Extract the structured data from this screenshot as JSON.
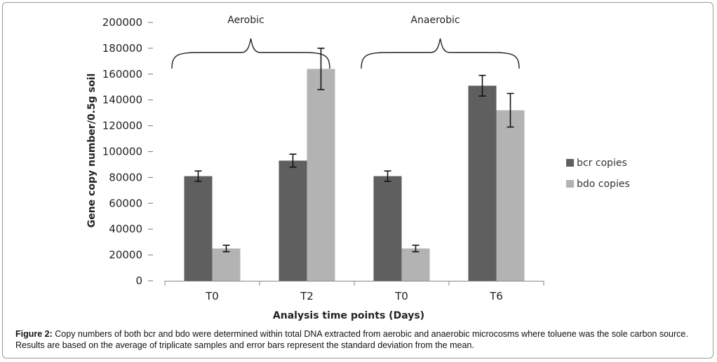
{
  "caption": {
    "label": "Figure 2:",
    "text": " Copy numbers of both bcr and bdo were determined within total DNA extracted from aerobic and anaerobic microcosms where toluene was the sole carbon source. Results are based on the average of triplicate samples and error bars represent the standard deviation from the mean."
  },
  "chart_data": {
    "type": "bar",
    "xlabel": "Analysis time points (Days)",
    "ylabel": "Gene copy number/0.5g soil",
    "ylim": [
      0,
      200000
    ],
    "yticks": [
      0,
      20000,
      40000,
      60000,
      80000,
      100000,
      120000,
      140000,
      160000,
      180000,
      200000
    ],
    "categories": [
      "T0",
      "T2",
      "T0",
      "T6"
    ],
    "series": [
      {
        "name": "bcr copies",
        "color": "#5f5f5f",
        "values": [
          81000,
          93000,
          81000,
          151000
        ],
        "errors": [
          4000,
          5000,
          4000,
          8000
        ]
      },
      {
        "name": "bdo copies",
        "color": "#b3b3b3",
        "values": [
          25000,
          164000,
          25000,
          132000
        ],
        "errors": [
          2500,
          16000,
          2500,
          13000
        ]
      }
    ],
    "groups": [
      {
        "label": "Aerobic",
        "from": 0,
        "to": 1
      },
      {
        "label": "Anaerobic",
        "from": 2,
        "to": 3
      }
    ],
    "legend": "right",
    "grid": false
  }
}
